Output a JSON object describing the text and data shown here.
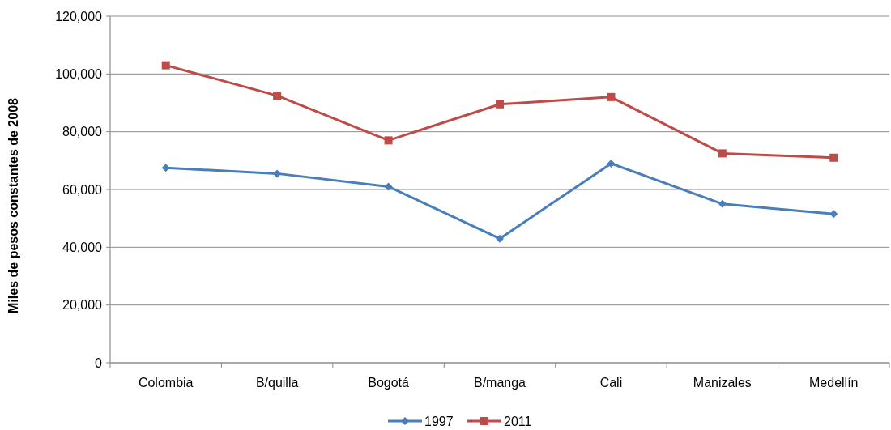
{
  "chart_data": {
    "type": "line",
    "ylabel": "Miles de pesos constantes de 2008",
    "categories": [
      "Colombia",
      "B/quilla",
      "Bogotá",
      "B/manga",
      "Cali",
      "Manizales",
      "Medellín"
    ],
    "series": [
      {
        "name": "1997",
        "color": "#4a7ebb",
        "marker": "diamond",
        "values": [
          67500,
          65500,
          61000,
          43000,
          69000,
          55000,
          51500
        ]
      },
      {
        "name": "2011",
        "color": "#be4b48",
        "marker": "square",
        "values": [
          103000,
          92500,
          77000,
          89500,
          92000,
          72500,
          71000
        ]
      }
    ],
    "ylim": [
      0,
      120000
    ],
    "yticks": [
      {
        "value": 0,
        "label": "0"
      },
      {
        "value": 20000,
        "label": "20,000"
      },
      {
        "value": 40000,
        "label": "40,000"
      },
      {
        "value": 60000,
        "label": "60,000"
      },
      {
        "value": 80000,
        "label": "80,000"
      },
      {
        "value": 100000,
        "label": "100,000"
      },
      {
        "value": 120000,
        "label": "120,000"
      }
    ],
    "grid": "y",
    "legend": "bottom",
    "line_style": "solid"
  }
}
